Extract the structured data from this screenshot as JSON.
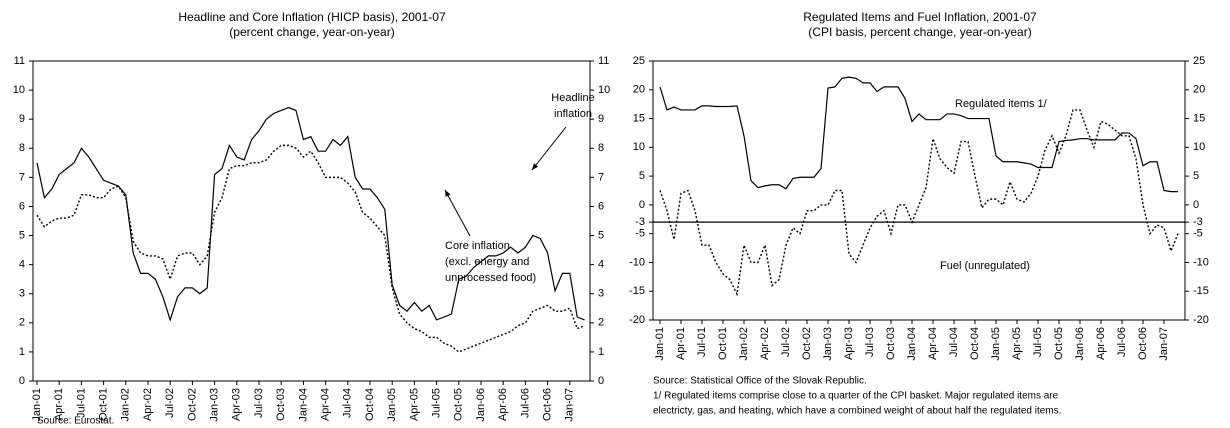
{
  "chart_data": [
    {
      "type": "line",
      "title": "Headline and Core Inflation (HICP basis), 2001-07",
      "subtitle": "(percent change, year-on-year)",
      "categories": [
        "Jan-01",
        null,
        null,
        "Apr-01",
        null,
        null,
        "Jul-01",
        null,
        null,
        "Oct-01",
        null,
        null,
        "Jan-02",
        null,
        null,
        "Apr-02",
        null,
        null,
        "Jul-02",
        null,
        null,
        "Oct-02",
        null,
        null,
        "Jan-03",
        null,
        null,
        "Apr-03",
        null,
        null,
        "Jul-03",
        null,
        null,
        "Oct-03",
        null,
        null,
        "Jan-04",
        null,
        null,
        "Apr-04",
        null,
        null,
        "Jul-04",
        null,
        null,
        "Oct-04",
        null,
        null,
        "Jan-05",
        null,
        null,
        "Apr-05",
        null,
        null,
        "Jul-05",
        null,
        null,
        "Oct-05",
        null,
        null,
        "Jan-06",
        null,
        null,
        "Apr-06",
        null,
        null,
        "Jul-06",
        null,
        null,
        "Oct-06",
        null,
        null,
        "Jan-07",
        null,
        null
      ],
      "series": [
        {
          "name": "Headline inflation",
          "color": "#000000",
          "style": "solid",
          "values": [
            7.5,
            6.3,
            6.6,
            7.1,
            7.3,
            7.5,
            8.0,
            7.7,
            7.3,
            6.9,
            6.8,
            6.7,
            6.4,
            4.4,
            3.7,
            3.7,
            3.5,
            2.9,
            2.1,
            2.9,
            3.2,
            3.2,
            3.0,
            3.2,
            7.1,
            7.3,
            8.1,
            7.7,
            7.6,
            8.3,
            8.6,
            9.0,
            9.2,
            9.3,
            9.4,
            9.3,
            8.3,
            8.4,
            7.9,
            7.9,
            8.3,
            8.1,
            8.4,
            7.0,
            6.6,
            6.6,
            6.3,
            5.9,
            3.3,
            2.6,
            2.4,
            2.7,
            2.4,
            2.6,
            2.1,
            2.2,
            2.3,
            3.5,
            3.6,
            3.9,
            4.1,
            4.3,
            4.3,
            4.4,
            4.6,
            4.4,
            4.6,
            5.0,
            4.9,
            4.4,
            3.1,
            3.7,
            3.7,
            2.2,
            2.1
          ]
        },
        {
          "name": "Core inflation",
          "color": "#000000",
          "style": "dotted",
          "values": [
            5.7,
            5.3,
            5.5,
            5.6,
            5.6,
            5.7,
            6.4,
            6.4,
            6.3,
            6.3,
            6.6,
            6.7,
            6.3,
            4.8,
            4.4,
            4.3,
            4.3,
            4.2,
            3.5,
            4.3,
            4.4,
            4.4,
            4.0,
            4.3,
            5.8,
            6.3,
            7.3,
            7.4,
            7.4,
            7.5,
            7.5,
            7.6,
            7.9,
            8.1,
            8.1,
            8.0,
            7.7,
            7.9,
            7.5,
            7.0,
            7.0,
            7.0,
            6.8,
            6.5,
            5.8,
            5.6,
            5.3,
            5.0,
            3.2,
            2.3,
            2.0,
            1.8,
            1.7,
            1.5,
            1.5,
            1.3,
            1.2,
            1.0,
            1.1,
            1.2,
            1.3,
            1.4,
            1.5,
            1.6,
            1.7,
            1.9,
            2.0,
            2.4,
            2.5,
            2.6,
            2.4,
            2.4,
            2.5,
            1.8,
            1.9
          ]
        }
      ],
      "ylim": [
        0,
        11
      ],
      "yticks": [
        0,
        1,
        2,
        3,
        4,
        5,
        6,
        7,
        8,
        9,
        10,
        11
      ],
      "annotations": [
        [
          "Headline",
          "inflation"
        ],
        [
          "Core inflation",
          "(excl. energy and",
          "unprocessed food)"
        ]
      ],
      "source": "Source: Eurostat.",
      "notes": []
    },
    {
      "type": "line",
      "title": "Regulated Items and Fuel Inflation, 2001-07",
      "subtitle": "(CPI basis, percent change, year-on-year)",
      "categories": [
        "Jan-01",
        null,
        null,
        "Apr-01",
        null,
        null,
        "Jul-01",
        null,
        null,
        "Oct-01",
        null,
        null,
        "Jan-02",
        null,
        null,
        "Apr-02",
        null,
        null,
        "Jul-02",
        null,
        null,
        "Oct-02",
        null,
        null,
        "Jan-03",
        null,
        null,
        "Apr-03",
        null,
        null,
        "Jul-03",
        null,
        null,
        "Oct-03",
        null,
        null,
        "Jan-04",
        null,
        null,
        "Apr-04",
        null,
        null,
        "Jul-04",
        null,
        null,
        "Oct-04",
        null,
        null,
        "Jan-05",
        null,
        null,
        "Apr-05",
        null,
        null,
        "Jul-05",
        null,
        null,
        "Oct-05",
        null,
        null,
        "Jan-06",
        null,
        null,
        "Apr-06",
        null,
        null,
        "Jul-06",
        null,
        null,
        "Oct-06",
        null,
        null,
        "Jan-07",
        null,
        null
      ],
      "series": [
        {
          "name": "Regulated items 1/",
          "color": "#000000",
          "style": "solid",
          "values": [
            20.5,
            16.5,
            17,
            16.5,
            16.5,
            16.5,
            17.2,
            17.2,
            17.1,
            17.1,
            17.1,
            17.2,
            12,
            4.2,
            3,
            3.3,
            3.5,
            3.5,
            2.8,
            4.6,
            4.8,
            4.8,
            4.8,
            6.3,
            20.3,
            20.5,
            22,
            22.2,
            22,
            21.2,
            21.2,
            19.7,
            20.5,
            20.5,
            20.5,
            18.5,
            14.5,
            15.8,
            14.8,
            14.8,
            14.8,
            15.8,
            15.8,
            15.5,
            15,
            15,
            15,
            15,
            8.5,
            7.5,
            7.5,
            7.5,
            7.3,
            7.1,
            6.5,
            6.5,
            6.5,
            11,
            11.2,
            11.3,
            11.5,
            11.5,
            11.3,
            11.3,
            11.3,
            11.3,
            12.5,
            12.5,
            11.5,
            6.8,
            7.5,
            7.5,
            2.5,
            2.3,
            2.3
          ]
        },
        {
          "name": "Fuel (unregulated)",
          "color": "#000000",
          "style": "dotted",
          "values": [
            2.5,
            -1,
            -6,
            2,
            2.5,
            -1,
            -7,
            -7,
            -10,
            -12,
            -13,
            -15.5,
            -7,
            -10,
            -10,
            -7,
            -14,
            -13,
            -7,
            -4,
            -5,
            -1,
            -1,
            0,
            0,
            2.5,
            2.5,
            -8.5,
            -10,
            -7,
            -4,
            -2,
            -1,
            -5,
            0,
            0,
            -3,
            0,
            3,
            11.5,
            8,
            6.5,
            5.5,
            11,
            11,
            5,
            -0.5,
            1,
            1,
            0,
            4,
            1,
            0.5,
            2,
            5,
            9.5,
            12,
            9,
            12,
            16.5,
            16.5,
            13,
            10,
            14.5,
            14,
            13,
            12,
            12,
            8,
            0,
            -5,
            -3.5,
            -4,
            -8,
            -5
          ]
        }
      ],
      "ylim": [
        -20,
        25
      ],
      "yticks": [
        -20,
        -15,
        -10,
        -5,
        -3,
        0,
        5,
        10,
        15,
        20,
        25
      ],
      "hline": -3,
      "annotations": [
        [
          "Regulated items 1/"
        ],
        [
          "Fuel (unregulated)"
        ]
      ],
      "source": "Source: Statistical Office of the Slovak Republic.",
      "notes": [
        "1/ Regulated items comprise close to a quarter of the CPI basket. Major regulated items are",
        "electricty, gas, and heating, which have a combined weight of about half the regulated items."
      ]
    }
  ]
}
